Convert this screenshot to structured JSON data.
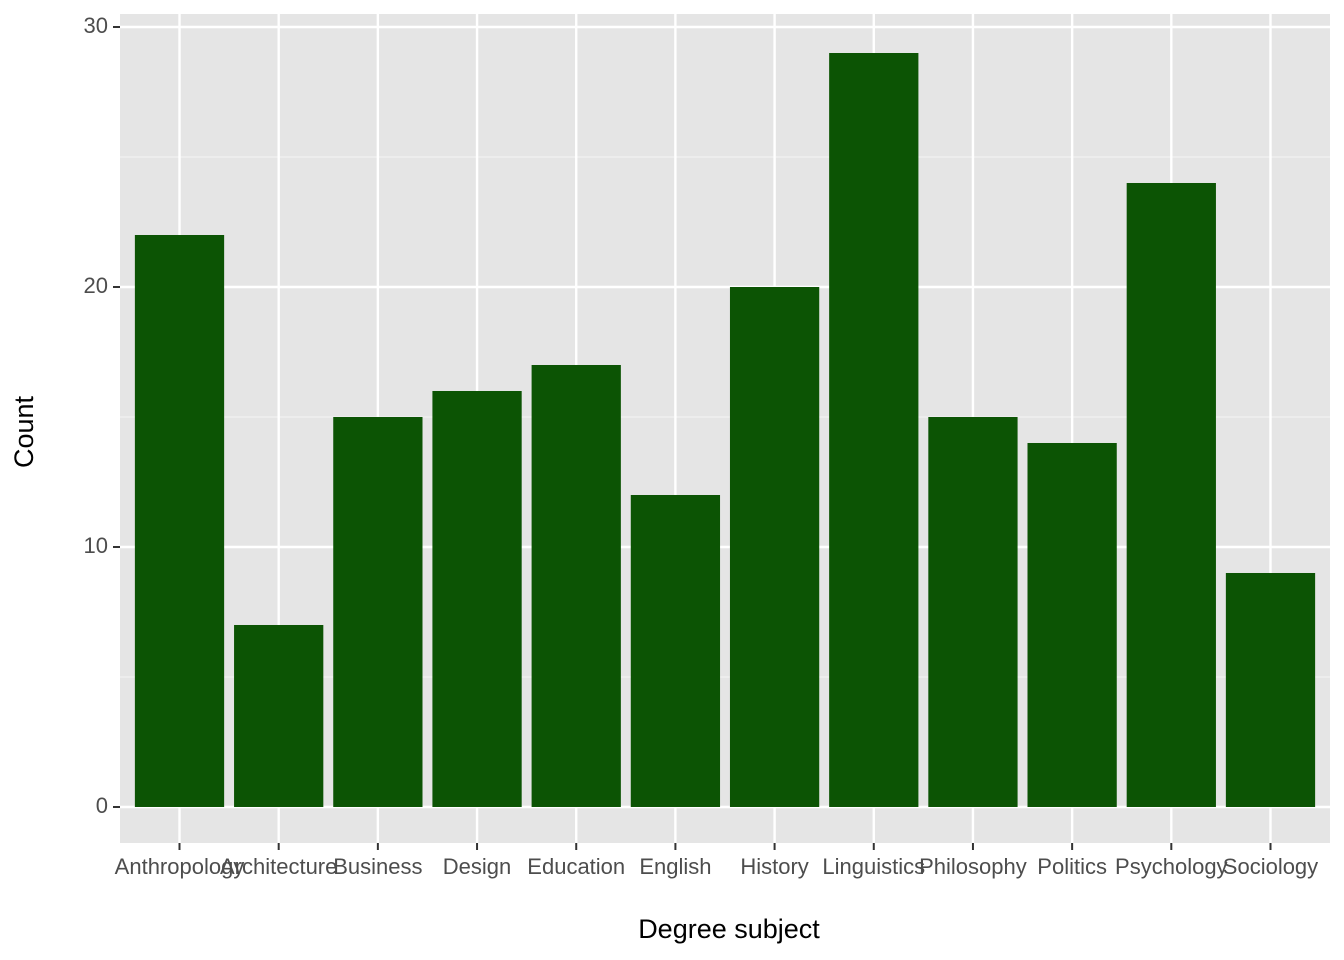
{
  "chart_data": {
    "type": "bar",
    "x_label": "Degree subject",
    "y_label": "Count",
    "categories": [
      "Anthropology",
      "Architecture",
      "Business",
      "Design",
      "Education",
      "English",
      "History",
      "Linguistics",
      "Philosophy",
      "Politics",
      "Psychology",
      "Sociology"
    ],
    "values": [
      22,
      7,
      15,
      16,
      17,
      12,
      20,
      29,
      15,
      14,
      24,
      9
    ],
    "color": "#0c5404",
    "ylim": [
      -1.385,
      30.5
    ],
    "yticks": [
      0,
      10,
      20,
      30
    ],
    "minor_yticks": [
      5,
      15,
      25
    ],
    "grid": true
  }
}
